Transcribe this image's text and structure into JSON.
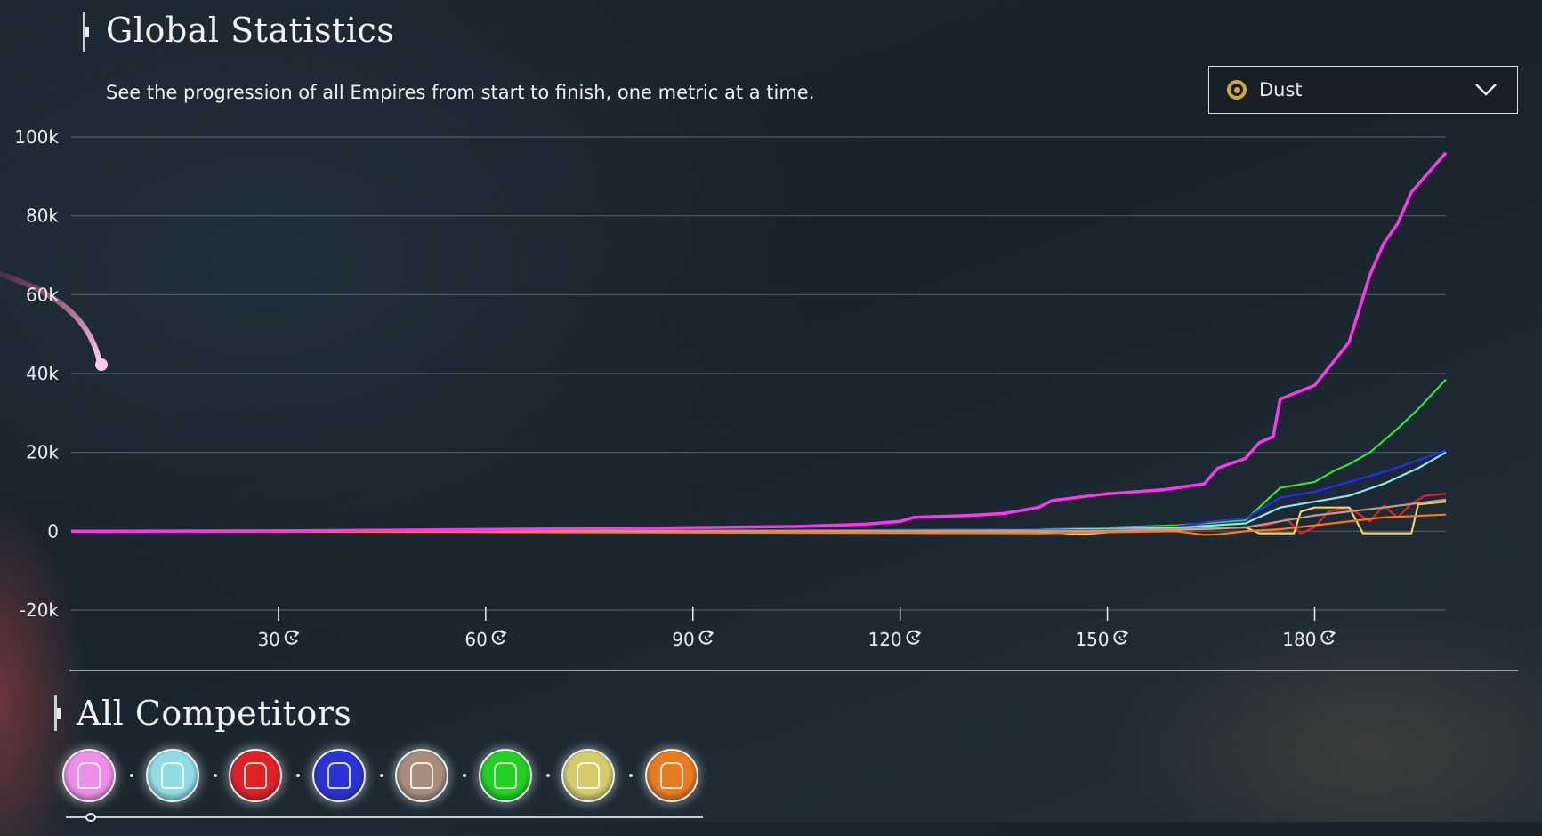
{
  "header": {
    "title": "Global Statistics",
    "subtitle": "See the progression of all Empires from start to finish, one metric at a time."
  },
  "metric_select": {
    "selected": "Dust",
    "icon": "dust-icon",
    "icon_color": "#d5a83f"
  },
  "chart_data": {
    "type": "line",
    "xlabel": "",
    "ylabel": "",
    "xlim": [
      0,
      199
    ],
    "ylim": [
      -20000,
      100000
    ],
    "y_ticks": [
      100000,
      80000,
      60000,
      40000,
      20000,
      0,
      -20000
    ],
    "y_tick_labels": [
      "100k",
      "80k",
      "60k",
      "40k",
      "20k",
      "0",
      "-20k"
    ],
    "x_ticks": [
      30,
      60,
      90,
      120,
      150,
      180
    ],
    "x_tick_labels": [
      "30",
      "60",
      "90",
      "120",
      "150",
      "180"
    ],
    "x_tick_icon": "turn-icon",
    "grid": true,
    "legend": "none",
    "series": [
      {
        "color": "#ff36f0",
        "x": [
          0,
          30,
          50,
          70,
          90,
          105,
          115,
          120,
          122,
          130,
          135,
          140,
          142,
          150,
          158,
          164,
          166,
          170,
          172,
          174,
          175,
          180,
          185,
          188,
          190,
          192,
          194,
          196,
          199
        ],
        "values": [
          0,
          100,
          300,
          600,
          900,
          1200,
          1800,
          2500,
          3500,
          4000,
          4500,
          6000,
          7800,
          9500,
          10500,
          12000,
          16000,
          18500,
          22500,
          24000,
          33500,
          37000,
          48000,
          65000,
          73000,
          78000,
          86000,
          90000,
          96000
        ]
      },
      {
        "color": "#33e533",
        "x": [
          0,
          100,
          140,
          160,
          170,
          175,
          180,
          183,
          185,
          188,
          190,
          192,
          195,
          199
        ],
        "values": [
          0,
          200,
          400,
          1500,
          2800,
          11000,
          12500,
          15500,
          17000,
          20000,
          23000,
          26000,
          31000,
          38500
        ]
      },
      {
        "color": "#1f2fff",
        "x": [
          0,
          100,
          140,
          160,
          165,
          170,
          175,
          180,
          185,
          190,
          195,
          199
        ],
        "values": [
          0,
          200,
          400,
          1200,
          2500,
          3200,
          8500,
          10000,
          12500,
          15000,
          18000,
          20500
        ]
      },
      {
        "color": "#8fe6f0",
        "x": [
          0,
          100,
          140,
          160,
          170,
          175,
          180,
          185,
          190,
          195,
          199
        ],
        "values": [
          0,
          150,
          300,
          900,
          2000,
          6000,
          7500,
          9000,
          12000,
          16000,
          20000
        ]
      },
      {
        "color": "#e82020",
        "x": [
          0,
          140,
          165,
          170,
          173,
          176,
          178,
          180,
          182,
          185,
          188,
          190,
          192,
          194,
          196,
          199
        ],
        "values": [
          0,
          200,
          500,
          1000,
          1500,
          3000,
          -500,
          1000,
          5000,
          6000,
          2500,
          6500,
          3500,
          7000,
          9000,
          9500
        ]
      },
      {
        "color": "#f0d36a",
        "x": [
          0,
          140,
          146,
          152,
          162,
          170,
          172,
          177,
          178,
          180,
          185,
          187,
          189,
          194,
          195,
          199
        ],
        "values": [
          0,
          0,
          -800,
          0,
          500,
          1000,
          -500,
          -500,
          5000,
          6000,
          6000,
          -500,
          -500,
          -500,
          6800,
          7500
        ]
      },
      {
        "color": "#b8a090",
        "x": [
          0,
          150,
          170,
          180,
          190,
          199
        ],
        "values": [
          0,
          100,
          1000,
          4000,
          6000,
          8000
        ]
      },
      {
        "color": "#ff7a1a",
        "x": [
          0,
          140,
          160,
          164,
          166,
          170,
          175,
          180,
          185,
          190,
          199
        ],
        "values": [
          0,
          -500,
          0,
          -900,
          -800,
          0,
          500,
          1500,
          2500,
          3500,
          4200
        ]
      }
    ]
  },
  "competitors_section": {
    "title": "All Competitors",
    "competitors": [
      {
        "icon": "crystal-icon",
        "color": "#ee8ee8"
      },
      {
        "icon": "eye-icon",
        "color": "#8fdce4"
      },
      {
        "icon": "cathedral-icon",
        "color": "#e02222"
      },
      {
        "icon": "winged-icon",
        "color": "#2a33d6"
      },
      {
        "icon": "beast-icon",
        "color": "#a88c7c"
      },
      {
        "icon": "rune-icon",
        "color": "#22d022"
      },
      {
        "icon": "plant-icon",
        "color": "#d4cc6a"
      },
      {
        "icon": "insect-icon",
        "color": "#ea7a1e"
      }
    ]
  }
}
